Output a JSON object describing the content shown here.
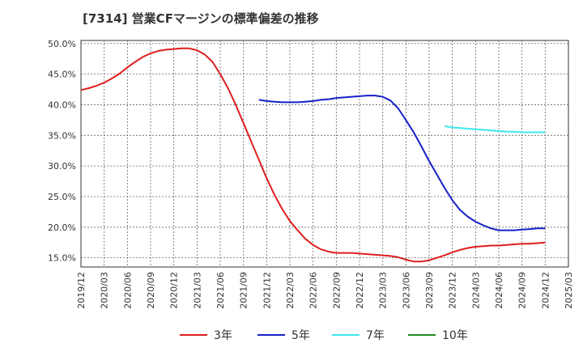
{
  "title": "[7314]  営業CFマージンの標準偏差の推移",
  "chart_data": {
    "type": "line",
    "title": "[7314]  営業CFマージンの標準偏差の推移",
    "xlabel": "",
    "ylabel": "",
    "ylim": [
      13.5,
      50.5
    ],
    "y_ticks": [
      15,
      20,
      25,
      30,
      35,
      40,
      45,
      50
    ],
    "y_tick_labels": [
      "15.0%",
      "20.0%",
      "25.0%",
      "30.0%",
      "35.0%",
      "40.0%",
      "45.0%",
      "50.0%"
    ],
    "x_tick_labels": [
      "2019/12",
      "2020/03",
      "2020/06",
      "2020/09",
      "2020/12",
      "2021/03",
      "2021/06",
      "2021/09",
      "2021/12",
      "2022/03",
      "2022/06",
      "2022/09",
      "2022/12",
      "2023/03",
      "2023/06",
      "2023/09",
      "2023/12",
      "2024/03",
      "2024/06",
      "2024/09",
      "2024/12",
      "2025/03"
    ],
    "grid": true,
    "legend_position": "bottom",
    "series": [
      {
        "name": "3年",
        "color": "#dd1f1f",
        "points": [
          [
            "2019/12",
            42.4
          ],
          [
            "2020/01",
            42.7
          ],
          [
            "2020/02",
            43.1
          ],
          [
            "2020/03",
            43.6
          ],
          [
            "2020/04",
            44.3
          ],
          [
            "2020/05",
            45.1
          ],
          [
            "2020/06",
            46.1
          ],
          [
            "2020/07",
            47.0
          ],
          [
            "2020/08",
            47.8
          ],
          [
            "2020/09",
            48.4
          ],
          [
            "2020/10",
            48.8
          ],
          [
            "2020/11",
            49.0
          ],
          [
            "2020/12",
            49.1
          ],
          [
            "2021/01",
            49.2
          ],
          [
            "2021/02",
            49.2
          ],
          [
            "2021/03",
            48.9
          ],
          [
            "2021/04",
            48.2
          ],
          [
            "2021/05",
            47.0
          ],
          [
            "2021/06",
            45.0
          ],
          [
            "2021/07",
            42.7
          ],
          [
            "2021/08",
            40.0
          ],
          [
            "2021/09",
            37.0
          ],
          [
            "2021/10",
            34.0
          ],
          [
            "2021/11",
            31.0
          ],
          [
            "2021/12",
            28.0
          ],
          [
            "2022/01",
            25.3
          ],
          [
            "2022/02",
            23.0
          ],
          [
            "2022/03",
            21.0
          ],
          [
            "2022/04",
            19.5
          ],
          [
            "2022/05",
            18.1
          ],
          [
            "2022/06",
            17.1
          ],
          [
            "2022/07",
            16.4
          ],
          [
            "2022/08",
            16.0
          ],
          [
            "2022/09",
            15.8
          ],
          [
            "2022/10",
            15.8
          ],
          [
            "2022/11",
            15.8
          ],
          [
            "2022/12",
            15.7
          ],
          [
            "2023/01",
            15.6
          ],
          [
            "2023/02",
            15.5
          ],
          [
            "2023/03",
            15.4
          ],
          [
            "2023/04",
            15.3
          ],
          [
            "2023/05",
            15.1
          ],
          [
            "2023/06",
            14.7
          ],
          [
            "2023/07",
            14.4
          ],
          [
            "2023/08",
            14.4
          ],
          [
            "2023/09",
            14.6
          ],
          [
            "2023/10",
            15.0
          ],
          [
            "2023/11",
            15.4
          ],
          [
            "2023/12",
            15.9
          ],
          [
            "2024/01",
            16.3
          ],
          [
            "2024/02",
            16.6
          ],
          [
            "2024/03",
            16.8
          ],
          [
            "2024/04",
            16.9
          ],
          [
            "2024/05",
            17.0
          ],
          [
            "2024/06",
            17.0
          ],
          [
            "2024/07",
            17.1
          ],
          [
            "2024/08",
            17.2
          ],
          [
            "2024/09",
            17.3
          ],
          [
            "2024/10",
            17.3
          ],
          [
            "2024/11",
            17.4
          ],
          [
            "2024/12",
            17.5
          ]
        ]
      },
      {
        "name": "5年",
        "color": "#1620c8",
        "points": [
          [
            "2021/11",
            40.8
          ],
          [
            "2021/12",
            40.6
          ],
          [
            "2022/01",
            40.5
          ],
          [
            "2022/02",
            40.4
          ],
          [
            "2022/03",
            40.4
          ],
          [
            "2022/04",
            40.4
          ],
          [
            "2022/05",
            40.5
          ],
          [
            "2022/06",
            40.6
          ],
          [
            "2022/07",
            40.8
          ],
          [
            "2022/08",
            40.9
          ],
          [
            "2022/09",
            41.1
          ],
          [
            "2022/10",
            41.2
          ],
          [
            "2022/11",
            41.3
          ],
          [
            "2022/12",
            41.4
          ],
          [
            "2023/01",
            41.5
          ],
          [
            "2023/02",
            41.5
          ],
          [
            "2023/03",
            41.3
          ],
          [
            "2023/04",
            40.7
          ],
          [
            "2023/05",
            39.4
          ],
          [
            "2023/06",
            37.5
          ],
          [
            "2023/07",
            35.5
          ],
          [
            "2023/08",
            33.2
          ],
          [
            "2023/09",
            30.8
          ],
          [
            "2023/10",
            28.6
          ],
          [
            "2023/11",
            26.4
          ],
          [
            "2023/12",
            24.4
          ],
          [
            "2024/01",
            22.8
          ],
          [
            "2024/02",
            21.7
          ],
          [
            "2024/03",
            20.9
          ],
          [
            "2024/04",
            20.3
          ],
          [
            "2024/05",
            19.8
          ],
          [
            "2024/06",
            19.5
          ],
          [
            "2024/07",
            19.5
          ],
          [
            "2024/08",
            19.5
          ],
          [
            "2024/09",
            19.6
          ],
          [
            "2024/10",
            19.7
          ],
          [
            "2024/11",
            19.8
          ],
          [
            "2024/12",
            19.8
          ]
        ]
      },
      {
        "name": "7年",
        "color": "#3fe6ee",
        "points": [
          [
            "2023/11",
            36.5
          ],
          [
            "2023/12",
            36.3
          ],
          [
            "2024/01",
            36.2
          ],
          [
            "2024/02",
            36.1
          ],
          [
            "2024/03",
            36.0
          ],
          [
            "2024/04",
            35.9
          ],
          [
            "2024/05",
            35.8
          ],
          [
            "2024/06",
            35.7
          ],
          [
            "2024/07",
            35.6
          ],
          [
            "2024/08",
            35.6
          ],
          [
            "2024/09",
            35.5
          ],
          [
            "2024/10",
            35.5
          ],
          [
            "2024/11",
            35.5
          ],
          [
            "2024/12",
            35.5
          ]
        ]
      },
      {
        "name": "10年",
        "color": "#1f8a1f",
        "points": []
      }
    ]
  }
}
